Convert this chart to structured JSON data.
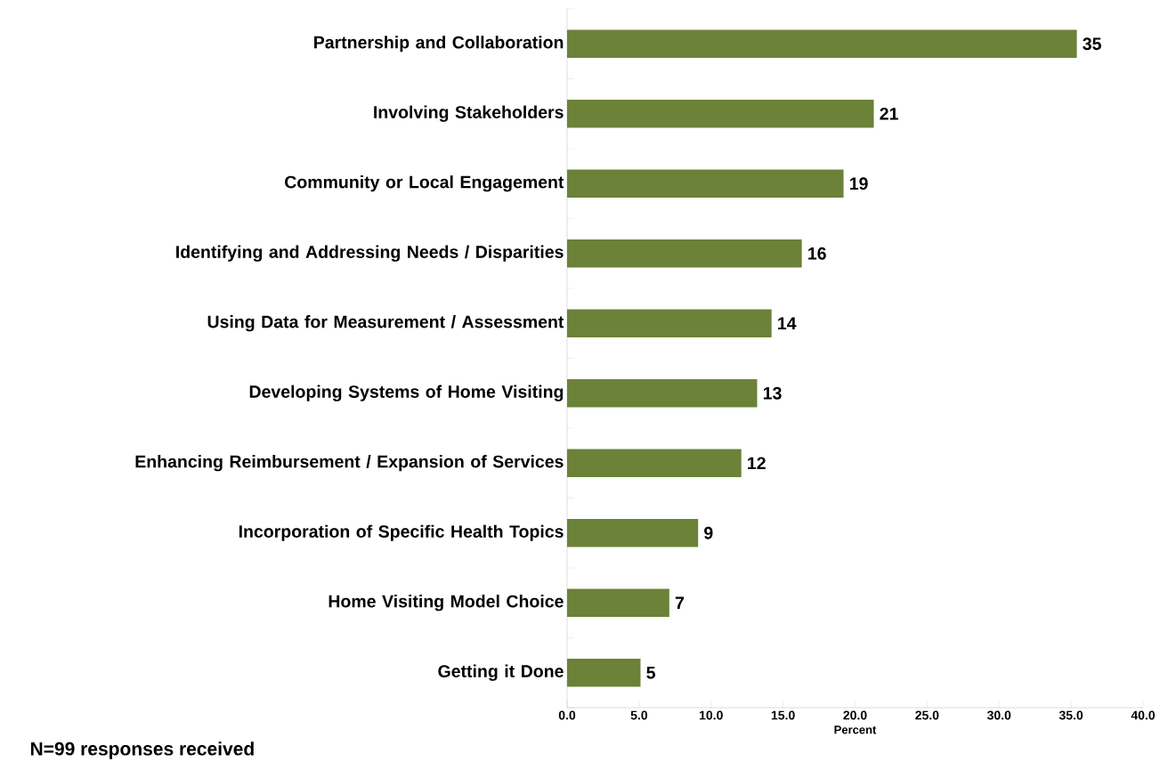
{
  "chart_data": {
    "type": "bar",
    "orientation": "horizontal",
    "xlabel": "Percent",
    "categories": [
      "Partnership and Collaboration",
      "Involving Stakeholders",
      "Community or Local Engagement",
      "Identifying and Addressing Needs / Disparities",
      "Using Data for Measurement / Assessment",
      "Developing Systems of Home Visiting",
      "Enhancing Reimbursement / Expansion of Services",
      "Incorporation of Specific Health Topics",
      "Home Visiting Model Choice",
      "Getting it Done"
    ],
    "values": [
      35.4,
      21.3,
      19.2,
      16.3,
      14.2,
      13.2,
      12.1,
      9.1,
      7.1,
      5.1
    ],
    "value_labels": [
      "35",
      "21",
      "19",
      "16",
      "14",
      "13",
      "12",
      "9",
      "7",
      "5"
    ],
    "color": "#6b8238",
    "xlim": [
      0,
      40
    ],
    "xticks": [
      {
        "value": 0,
        "label": "0.0"
      },
      {
        "value": 5,
        "label": "5.0"
      },
      {
        "value": 10,
        "label": "10.0"
      },
      {
        "value": 15,
        "label": "15.0"
      },
      {
        "value": 20,
        "label": "20.0"
      },
      {
        "value": 25,
        "label": "25.0"
      },
      {
        "value": 30,
        "label": "30.0"
      },
      {
        "value": 35,
        "label": "35.0"
      },
      {
        "value": 40,
        "label": "40.0"
      }
    ],
    "grid": false,
    "annotations": [
      "N=99 responses received"
    ]
  }
}
